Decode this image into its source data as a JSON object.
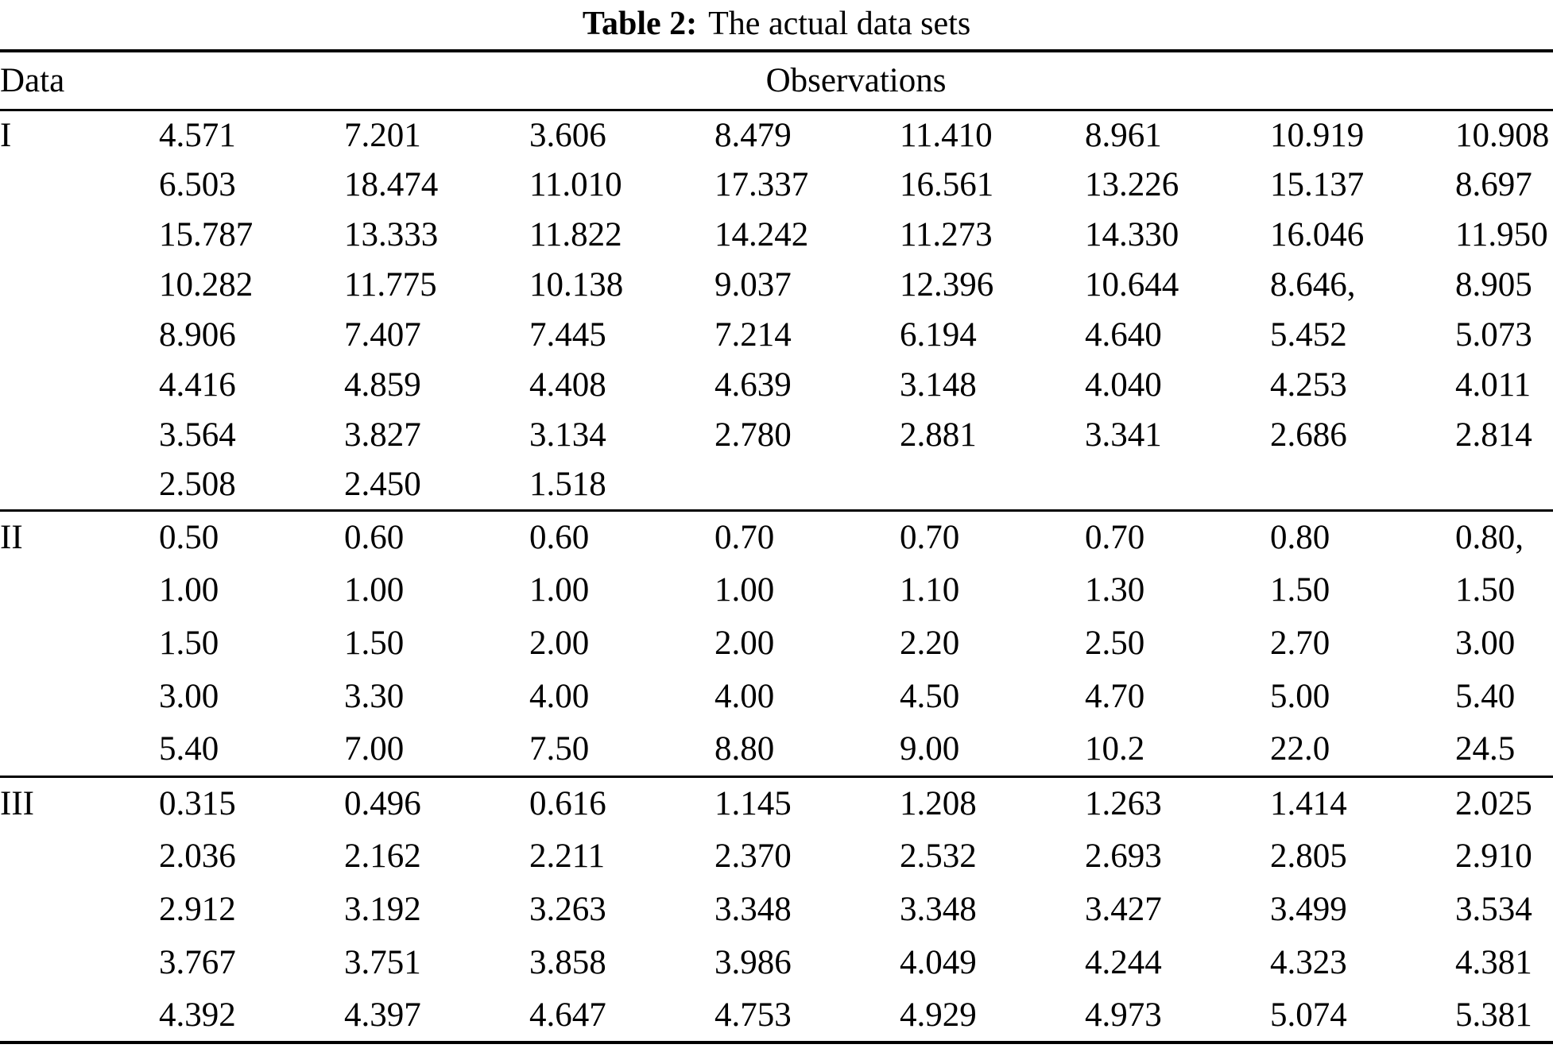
{
  "title": {
    "prefix": "Table 2:",
    "text": "The actual data sets"
  },
  "header": {
    "data_label": "Data",
    "observations_label": "Observations"
  },
  "sections": [
    {
      "label": "I",
      "rows": [
        [
          "4.571",
          "7.201",
          "3.606",
          "8.479",
          "11.410",
          "8.961",
          "10.919",
          "10.908"
        ],
        [
          "6.503",
          "18.474",
          "11.010",
          "17.337",
          "16.561",
          "13.226",
          "15.137",
          "8.697"
        ],
        [
          "15.787",
          "13.333",
          "11.822",
          "14.242",
          "11.273",
          "14.330",
          "16.046",
          "11.950"
        ],
        [
          "10.282",
          "11.775",
          "10.138",
          "9.037",
          "12.396",
          "10.644",
          "8.646,",
          "8.905"
        ],
        [
          "8.906",
          "7.407",
          "7.445",
          "7.214",
          "6.194",
          "4.640",
          "5.452",
          "5.073"
        ],
        [
          "4.416",
          "4.859",
          "4.408",
          "4.639",
          "3.148",
          "4.040",
          "4.253",
          "4.011"
        ],
        [
          "3.564",
          "3.827",
          "3.134",
          "2.780",
          "2.881",
          "3.341",
          "2.686",
          "2.814"
        ],
        [
          "2.508",
          "2.450",
          "1.518",
          "",
          "",
          "",
          "",
          ""
        ]
      ]
    },
    {
      "label": "II",
      "rows": [
        [
          "0.50",
          "0.60",
          "0.60",
          "0.70",
          "0.70",
          "0.70",
          "0.80",
          "0.80,"
        ],
        [
          "1.00",
          "1.00",
          "1.00",
          "1.00",
          "1.10",
          "1.30",
          "1.50",
          "1.50"
        ],
        [
          "1.50",
          "1.50",
          "2.00",
          "2.00",
          "2.20",
          "2.50",
          "2.70",
          "3.00"
        ],
        [
          "3.00",
          "3.30",
          "4.00",
          "4.00",
          "4.50",
          "4.70",
          "5.00",
          "5.40"
        ],
        [
          "5.40",
          "7.00",
          "7.50",
          "8.80",
          "9.00",
          "10.2",
          "22.0",
          "24.5"
        ]
      ]
    },
    {
      "label": "III",
      "rows": [
        [
          "0.315",
          "0.496",
          "0.616",
          "1.145",
          "1.208",
          "1.263",
          "1.414",
          "2.025"
        ],
        [
          "2.036",
          "2.162",
          "2.211",
          "2.370",
          "2.532",
          "2.693",
          "2.805",
          "2.910"
        ],
        [
          "2.912",
          "3.192",
          "3.263",
          "3.348",
          "3.348",
          "3.427",
          "3.499",
          "3.534"
        ],
        [
          "3.767",
          "3.751",
          "3.858",
          "3.986",
          "4.049",
          "4.244",
          "4.323",
          "4.381"
        ],
        [
          "4.392",
          "4.397",
          "4.647",
          "4.753",
          "4.929",
          "4.973",
          "5.074",
          "5.381"
        ]
      ]
    }
  ],
  "colors": {
    "text": "#000000",
    "background": "#ffffff",
    "rule": "#000000"
  }
}
